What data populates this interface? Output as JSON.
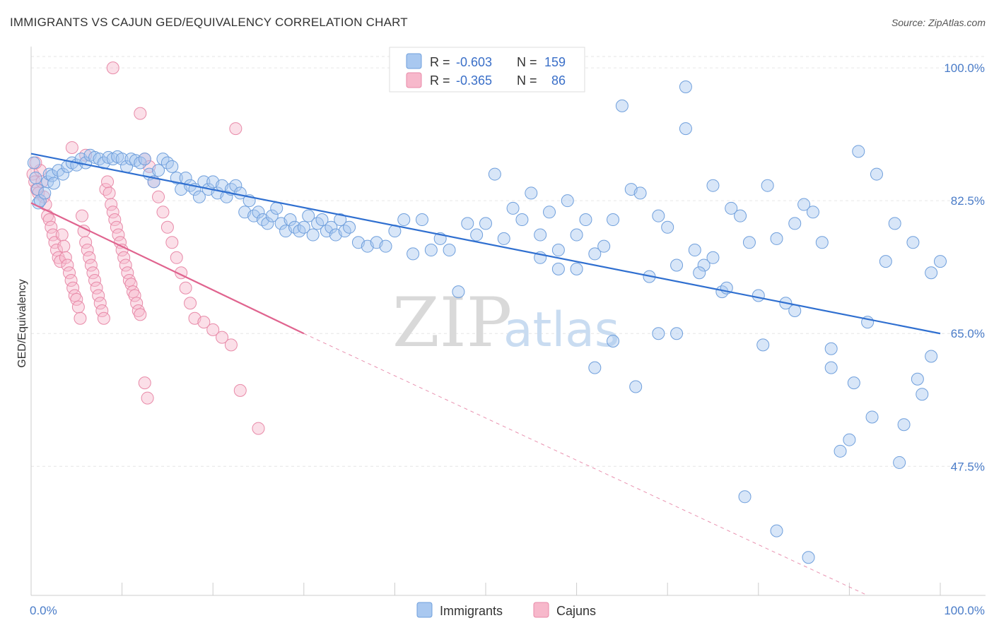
{
  "title": "IMMIGRANTS VS CAJUN GED/EQUIVALENCY CORRELATION CHART",
  "source": "Source: ZipAtlas.com",
  "watermark": {
    "zip": "ZIP",
    "atlas": "atlas"
  },
  "legend": {
    "r_label": "R =",
    "n_label": "N =",
    "rows": [
      {
        "r": "-0.603",
        "n": "159",
        "color": "#a9c8f0",
        "stroke": "#6f9fdc"
      },
      {
        "r": "-0.365",
        "n": "86",
        "color": "#f7b8cb",
        "stroke": "#e88aa8"
      }
    ]
  },
  "bottom_legend": [
    "Immigrants",
    "Cajuns"
  ],
  "chart_data": {
    "type": "scatter",
    "ylabel": "GED/Equivalency",
    "x_tick_labels": [
      "0.0%",
      "100.0%"
    ],
    "y_tick_labels": [
      "100.0%",
      "82.5%",
      "65.0%",
      "47.5%"
    ],
    "y_ticks": [
      100.0,
      82.5,
      65.0,
      47.5
    ],
    "xlim": [
      0,
      100
    ],
    "ylim": [
      30.5,
      101.5
    ],
    "grid": true,
    "legend_position": "top-center",
    "colors": {
      "immigrants_fill": "#a9c8f0",
      "immigrants_stroke": "#6f9fdc",
      "immigrants_line": "#2f6fd0",
      "cajuns_fill": "#f7b8cb",
      "cajuns_stroke": "#e88aa8",
      "cajuns_line": "#e0648f"
    },
    "series": [
      {
        "name": "Immigrants",
        "trend": {
          "x": [
            0,
            100
          ],
          "y": [
            88.7,
            65.0
          ]
        },
        "points": [
          [
            0.3,
            87.5
          ],
          [
            0.5,
            85.5
          ],
          [
            0.7,
            84.0
          ],
          [
            0.8,
            82.2
          ],
          [
            1.0,
            82.5
          ],
          [
            1.5,
            83.5
          ],
          [
            1.8,
            85.0
          ],
          [
            2.0,
            86.0
          ],
          [
            2.3,
            85.8
          ],
          [
            2.5,
            84.8
          ],
          [
            3.0,
            86.5
          ],
          [
            3.5,
            86.0
          ],
          [
            4.0,
            87.0
          ],
          [
            4.5,
            87.5
          ],
          [
            5.0,
            87.2
          ],
          [
            5.5,
            88.0
          ],
          [
            6.0,
            87.5
          ],
          [
            6.5,
            88.5
          ],
          [
            7.0,
            88.2
          ],
          [
            7.5,
            88.0
          ],
          [
            8.0,
            87.5
          ],
          [
            8.5,
            88.2
          ],
          [
            9.0,
            88.0
          ],
          [
            9.5,
            88.3
          ],
          [
            10.0,
            88.0
          ],
          [
            10.5,
            87.0
          ],
          [
            11.0,
            88.0
          ],
          [
            11.5,
            87.8
          ],
          [
            12.0,
            87.5
          ],
          [
            12.5,
            88.0
          ],
          [
            13.0,
            86.0
          ],
          [
            13.5,
            85.0
          ],
          [
            14.0,
            86.5
          ],
          [
            14.5,
            88.0
          ],
          [
            15.0,
            87.5
          ],
          [
            15.5,
            87.0
          ],
          [
            16.0,
            85.5
          ],
          [
            16.5,
            84.0
          ],
          [
            17.0,
            85.5
          ],
          [
            17.5,
            84.5
          ],
          [
            18.0,
            84.0
          ],
          [
            18.5,
            83.0
          ],
          [
            19.0,
            85.0
          ],
          [
            19.5,
            84.0
          ],
          [
            20.0,
            85.0
          ],
          [
            20.5,
            83.5
          ],
          [
            21.0,
            84.5
          ],
          [
            21.5,
            83.0
          ],
          [
            22.0,
            84.0
          ],
          [
            22.5,
            84.5
          ],
          [
            23.0,
            83.5
          ],
          [
            23.5,
            81.0
          ],
          [
            24.0,
            82.5
          ],
          [
            24.5,
            80.5
          ],
          [
            25.0,
            81.0
          ],
          [
            25.5,
            80.0
          ],
          [
            26.0,
            79.5
          ],
          [
            26.5,
            80.5
          ],
          [
            27.0,
            81.5
          ],
          [
            27.5,
            79.5
          ],
          [
            28.0,
            78.5
          ],
          [
            28.5,
            80.0
          ],
          [
            29.0,
            79.0
          ],
          [
            29.5,
            78.5
          ],
          [
            30.0,
            79.0
          ],
          [
            30.5,
            80.5
          ],
          [
            31.0,
            78.0
          ],
          [
            31.5,
            79.5
          ],
          [
            32.0,
            80.0
          ],
          [
            32.5,
            78.5
          ],
          [
            33.0,
            79.0
          ],
          [
            33.5,
            78.0
          ],
          [
            34.0,
            80.0
          ],
          [
            34.5,
            78.5
          ],
          [
            35.0,
            79.0
          ],
          [
            36.0,
            77.0
          ],
          [
            37.0,
            76.5
          ],
          [
            38.0,
            77.0
          ],
          [
            39.0,
            76.5
          ],
          [
            40.0,
            78.5
          ],
          [
            41.0,
            80.0
          ],
          [
            42.0,
            75.5
          ],
          [
            43.0,
            80.0
          ],
          [
            44.0,
            76.0
          ],
          [
            45.0,
            77.5
          ],
          [
            46.0,
            76.0
          ],
          [
            47.0,
            70.5
          ],
          [
            48.0,
            79.5
          ],
          [
            49.0,
            78.0
          ],
          [
            50.0,
            79.5
          ],
          [
            51.0,
            86.0
          ],
          [
            52.0,
            77.5
          ],
          [
            53.0,
            81.5
          ],
          [
            54.0,
            80.0
          ],
          [
            55.0,
            83.5
          ],
          [
            56.0,
            78.0
          ],
          [
            57.0,
            81.0
          ],
          [
            58.0,
            73.5
          ],
          [
            59.0,
            82.5
          ],
          [
            60.0,
            73.5
          ],
          [
            61.0,
            80.0
          ],
          [
            62.0,
            75.5
          ],
          [
            63.0,
            76.5
          ],
          [
            64.0,
            80.0
          ],
          [
            65.0,
            95.0
          ],
          [
            66.0,
            84.0
          ],
          [
            67.0,
            83.5
          ],
          [
            68.0,
            72.5
          ],
          [
            69.0,
            80.5
          ],
          [
            70.0,
            79.0
          ],
          [
            71.0,
            74.0
          ],
          [
            72.0,
            92.0
          ],
          [
            73.0,
            76.0
          ],
          [
            74.0,
            74.0
          ],
          [
            75.0,
            75.0
          ],
          [
            76.0,
            70.5
          ],
          [
            77.0,
            81.5
          ],
          [
            78.0,
            80.5
          ],
          [
            79.0,
            77.0
          ],
          [
            80.0,
            70.0
          ],
          [
            81.0,
            84.5
          ],
          [
            82.0,
            77.5
          ],
          [
            83.0,
            69.0
          ],
          [
            84.0,
            79.5
          ],
          [
            85.0,
            82.0
          ],
          [
            86.0,
            81.0
          ],
          [
            87.0,
            77.0
          ],
          [
            88.0,
            60.5
          ],
          [
            89.0,
            49.5
          ],
          [
            90.0,
            51.0
          ],
          [
            91.0,
            89.0
          ],
          [
            92.0,
            66.5
          ],
          [
            93.0,
            86.0
          ],
          [
            94.0,
            74.5
          ],
          [
            95.0,
            79.5
          ],
          [
            96.0,
            53.0
          ],
          [
            97.0,
            77.0
          ],
          [
            98.0,
            57.0
          ],
          [
            99.0,
            73.0
          ],
          [
            100.0,
            74.5
          ],
          [
            72.0,
            97.5
          ],
          [
            73.5,
            73.0
          ],
          [
            75.0,
            84.5
          ],
          [
            69.0,
            65.0
          ],
          [
            78.5,
            43.5
          ],
          [
            82.0,
            39.0
          ],
          [
            85.5,
            35.5
          ],
          [
            66.5,
            58.0
          ],
          [
            71.0,
            65.0
          ],
          [
            76.5,
            71.0
          ],
          [
            80.5,
            63.5
          ],
          [
            84.0,
            68.0
          ],
          [
            88.0,
            63.0
          ],
          [
            90.5,
            58.5
          ],
          [
            92.5,
            54.0
          ],
          [
            95.5,
            48.0
          ],
          [
            97.5,
            59.0
          ],
          [
            99.0,
            62.0
          ],
          [
            62.0,
            60.5
          ],
          [
            64.0,
            64.0
          ],
          [
            60.0,
            78.0
          ],
          [
            58.0,
            76.0
          ],
          [
            56.0,
            75.0
          ]
        ]
      },
      {
        "name": "Cajuns",
        "trend": {
          "x": [
            0,
            30
          ],
          "y": [
            82.2,
            65.0
          ]
        },
        "trend_dashed": {
          "x": [
            30,
            92
          ],
          "y": [
            65.0,
            30.5
          ]
        },
        "points": [
          [
            0.2,
            86.0
          ],
          [
            0.4,
            85.0
          ],
          [
            0.6,
            84.0
          ],
          [
            0.8,
            83.5
          ],
          [
            1.0,
            86.5
          ],
          [
            1.2,
            85.0
          ],
          [
            1.4,
            83.0
          ],
          [
            1.6,
            82.0
          ],
          [
            1.8,
            80.5
          ],
          [
            2.0,
            80.0
          ],
          [
            2.2,
            79.0
          ],
          [
            2.4,
            78.0
          ],
          [
            2.6,
            77.0
          ],
          [
            2.8,
            76.0
          ],
          [
            3.0,
            75.0
          ],
          [
            3.2,
            74.5
          ],
          [
            3.4,
            78.0
          ],
          [
            3.6,
            76.5
          ],
          [
            3.8,
            75.0
          ],
          [
            4.0,
            74.0
          ],
          [
            4.2,
            73.0
          ],
          [
            4.4,
            72.0
          ],
          [
            4.6,
            71.0
          ],
          [
            4.8,
            70.0
          ],
          [
            5.0,
            69.5
          ],
          [
            5.2,
            68.5
          ],
          [
            5.4,
            67.0
          ],
          [
            5.6,
            80.5
          ],
          [
            5.8,
            78.5
          ],
          [
            6.0,
            77.0
          ],
          [
            6.2,
            76.0
          ],
          [
            6.4,
            75.0
          ],
          [
            6.6,
            74.0
          ],
          [
            6.8,
            73.0
          ],
          [
            7.0,
            72.0
          ],
          [
            7.2,
            71.0
          ],
          [
            7.4,
            70.0
          ],
          [
            7.6,
            69.0
          ],
          [
            7.8,
            68.0
          ],
          [
            8.0,
            67.0
          ],
          [
            8.2,
            84.0
          ],
          [
            8.4,
            85.0
          ],
          [
            8.6,
            83.5
          ],
          [
            8.8,
            82.0
          ],
          [
            9.0,
            81.0
          ],
          [
            9.2,
            80.0
          ],
          [
            9.4,
            79.0
          ],
          [
            9.6,
            78.0
          ],
          [
            9.8,
            77.0
          ],
          [
            10.0,
            76.0
          ],
          [
            10.2,
            75.0
          ],
          [
            10.4,
            74.0
          ],
          [
            10.6,
            73.0
          ],
          [
            10.8,
            72.0
          ],
          [
            11.0,
            71.5
          ],
          [
            11.2,
            70.5
          ],
          [
            11.4,
            70.0
          ],
          [
            11.6,
            69.0
          ],
          [
            11.8,
            68.0
          ],
          [
            12.0,
            67.5
          ],
          [
            12.5,
            88.0
          ],
          [
            13.0,
            87.0
          ],
          [
            13.5,
            85.0
          ],
          [
            14.0,
            83.0
          ],
          [
            14.5,
            81.0
          ],
          [
            15.0,
            79.0
          ],
          [
            15.5,
            77.0
          ],
          [
            16.0,
            75.0
          ],
          [
            16.5,
            73.0
          ],
          [
            17.0,
            71.0
          ],
          [
            17.5,
            69.0
          ],
          [
            18.0,
            67.0
          ],
          [
            19.0,
            66.5
          ],
          [
            20.0,
            65.5
          ],
          [
            21.0,
            64.5
          ],
          [
            22.0,
            63.5
          ],
          [
            9.0,
            100.0
          ],
          [
            12.0,
            94.0
          ],
          [
            22.5,
            92.0
          ],
          [
            12.5,
            58.5
          ],
          [
            12.8,
            56.5
          ],
          [
            23.0,
            57.5
          ],
          [
            25.0,
            52.5
          ],
          [
            4.5,
            89.5
          ],
          [
            6.0,
            88.5
          ],
          [
            0.5,
            87.5
          ]
        ]
      }
    ]
  }
}
